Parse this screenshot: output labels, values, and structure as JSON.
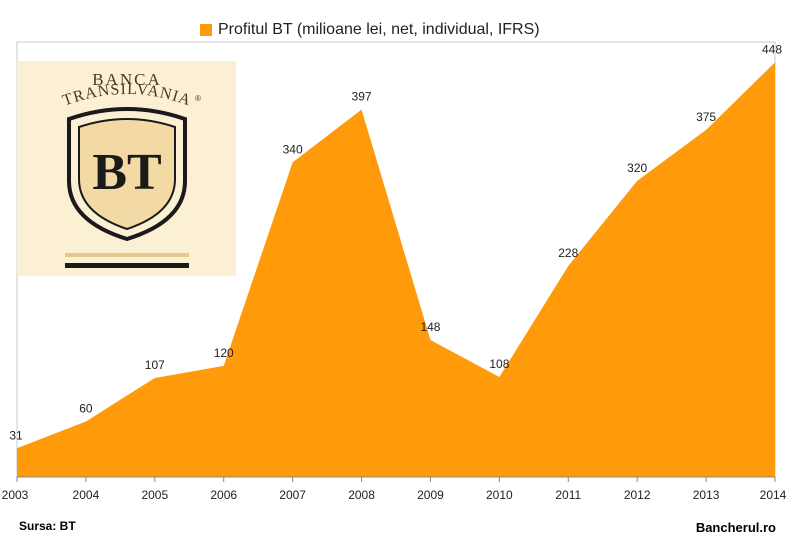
{
  "legend": {
    "label": "Profitul BT (milioane lei, net, individual, IFRS)",
    "color": "#ff9a0a"
  },
  "logo": {
    "line1": "BANCA",
    "line2": "TRANSILVANIA",
    "registered": "®",
    "monogram": "BT"
  },
  "footer": {
    "source": "Sursa: BT",
    "site": "Bancherul.ro"
  },
  "chart_data": {
    "type": "area",
    "categories": [
      "2003",
      "2004",
      "2005",
      "2006",
      "2007",
      "2008",
      "2009",
      "2010",
      "2011",
      "2012",
      "2013",
      "2014"
    ],
    "series": [
      {
        "name": "Profitul BT (milioane lei, net, individual, IFRS)",
        "values": [
          31,
          60,
          107,
          120,
          340,
          397,
          148,
          108,
          228,
          320,
          375,
          448
        ]
      }
    ],
    "ylim": [
      0,
      470
    ],
    "grid": false,
    "legend_position": "top",
    "color": "#ff9a0a"
  }
}
